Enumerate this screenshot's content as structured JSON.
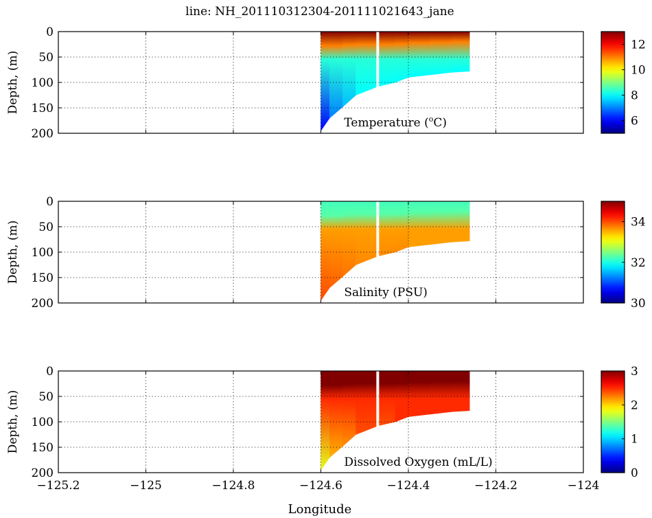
{
  "title": "line: NH_201110312304-201111021643_jane",
  "chart_data": {
    "type": "heatmap",
    "title": "line: NH_201110312304-201111021643_jane",
    "xlabel": "Longitude",
    "xlim": [
      -125.2,
      -124.0
    ],
    "xticks": [
      -125.2,
      -125.0,
      -124.8,
      -124.6,
      -124.4,
      -124.2,
      -124.0
    ],
    "xtick_labels": [
      "−125.2",
      "−125",
      "−124.8",
      "−124.6",
      "−124.4",
      "−124.2",
      "−124"
    ],
    "grid": true,
    "colormap": "jet",
    "data_gap_longitude": -124.47,
    "panels": [
      {
        "variable": "Temperature",
        "label": "Temperature (°C)",
        "label_main": "Temperature (",
        "label_sup": "o",
        "label_end": "C)",
        "ylabel": "Depth, (m)",
        "ylim": [
          0,
          200
        ],
        "yticks": [
          0,
          50,
          100,
          150,
          200
        ],
        "colorbar": {
          "min": 5,
          "max": 13,
          "ticks": [
            6,
            8,
            10,
            12
          ]
        },
        "layers": [
          {
            "boundary": "surface",
            "values": [
              13,
              13,
              13,
              13,
              13,
              13,
              13,
              13,
              13,
              13
            ]
          },
          {
            "boundary": "mixed_layer_base",
            "values": [
              11,
              11,
              11,
              11,
              11,
              11,
              11,
              11,
              11,
              11
            ]
          },
          {
            "boundary": "thermocline_base",
            "values": [
              8.3,
              8.3,
              8.3,
              8.3,
              8.3,
              8.3,
              8.3,
              8.3,
              8.3,
              8.3
            ]
          },
          {
            "boundary": "bottom",
            "values": [
              6,
              7,
              7.5,
              8,
              8,
              8,
              8,
              8,
              8,
              8
            ]
          }
        ]
      },
      {
        "variable": "Salinity",
        "label": "Salinity (PSU)",
        "ylabel": "Depth, (m)",
        "ylim": [
          0,
          200
        ],
        "yticks": [
          0,
          50,
          100,
          150,
          200
        ],
        "colorbar": {
          "min": 30,
          "max": 35,
          "ticks": [
            30,
            32,
            34
          ]
        },
        "layers": [
          {
            "boundary": "surface",
            "values": [
              32.2,
              32.2,
              32.2,
              32.2,
              32.2,
              32.2,
              32.2,
              32.2,
              32.2,
              32.2
            ]
          },
          {
            "boundary": "mixed_layer_base",
            "values": [
              32.3,
              32.3,
              32.3,
              32.3,
              32.3,
              32.3,
              32.3,
              32.3,
              32.3,
              32.3
            ]
          },
          {
            "boundary": "halocline_base",
            "values": [
              33.6,
              33.6,
              33.6,
              33.6,
              33.6,
              33.6,
              33.6,
              33.6,
              33.6,
              33.6
            ]
          },
          {
            "boundary": "bottom",
            "values": [
              34.0,
              33.9,
              33.8,
              33.7,
              33.7,
              33.7,
              33.6,
              33.6,
              33.6,
              33.6
            ]
          }
        ]
      },
      {
        "variable": "Dissolved Oxygen",
        "label": "Dissolved Oxygen (mL/L)",
        "ylabel": "Depth, (m)",
        "ylim": [
          0,
          200
        ],
        "yticks": [
          0,
          50,
          100,
          150,
          200
        ],
        "colorbar": {
          "min": 0,
          "max": 3,
          "ticks": [
            0,
            1,
            2,
            3
          ]
        },
        "layers": [
          {
            "boundary": "surface",
            "values": [
              3,
              3,
              3,
              3,
              3,
              3,
              3,
              3,
              3,
              3
            ]
          },
          {
            "boundary": "oxycline_top",
            "values": [
              3,
              3,
              3,
              3,
              3,
              3,
              3,
              3,
              3,
              3
            ]
          },
          {
            "boundary": "oxycline_mid",
            "values": [
              2.5,
              2.5,
              2.5,
              2.5,
              2.5,
              2.5,
              2.5,
              2.5,
              2.5,
              2.5
            ]
          },
          {
            "boundary": "bottom",
            "values": [
              1.8,
              2.1,
              2.2,
              2.4,
              2.4,
              2.5,
              2.5,
              2.5,
              2.5,
              2.5
            ]
          }
        ]
      }
    ],
    "section": {
      "longitude": [
        -124.6,
        -124.58,
        -124.55,
        -124.52,
        -124.47,
        -124.43,
        -124.4,
        -124.35,
        -124.3,
        -124.26
      ],
      "bottom_depth": [
        195,
        170,
        148,
        125,
        108,
        100,
        90,
        85,
        80,
        78
      ],
      "mixed_layer_depth": [
        28,
        28,
        26,
        25,
        25,
        24,
        22,
        21,
        20,
        20
      ],
      "thermocline_depth": [
        55,
        55,
        55,
        55,
        55,
        55,
        55,
        55,
        55,
        55
      ]
    }
  }
}
